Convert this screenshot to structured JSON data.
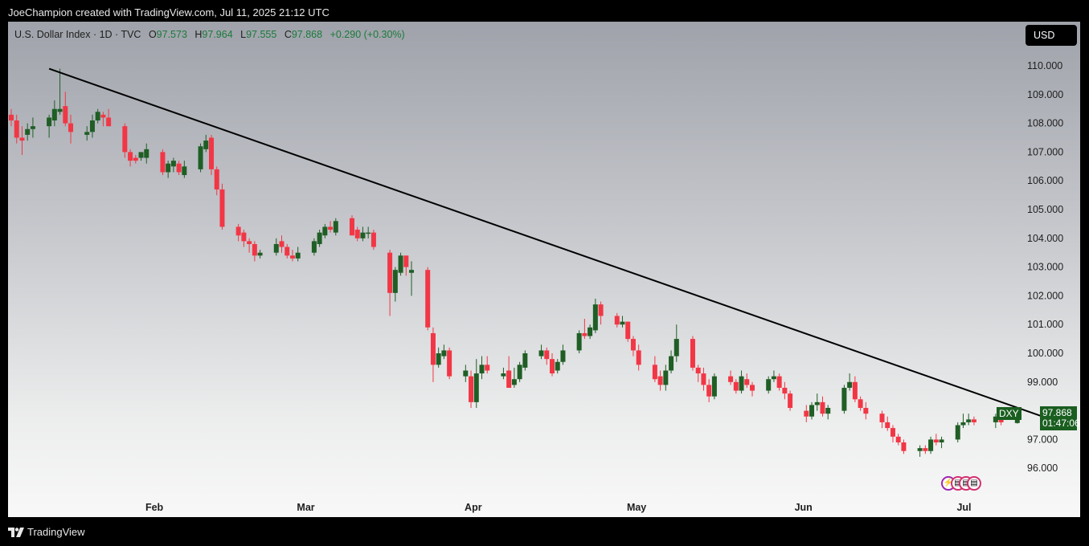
{
  "header": {
    "credit": "JoeChampion created with TradingView.com, Jul 11, 2025 21:12 UTC"
  },
  "legend": {
    "title": "U.S. Dollar Index · 1D · TVC",
    "open_label": "O",
    "open": "97.573",
    "high_label": "H",
    "high": "97.964",
    "low_label": "L",
    "low": "97.555",
    "close_label": "C",
    "close": "97.868",
    "change": "+0.290 (+0.30%)"
  },
  "currency_button": "USD",
  "last_price": {
    "symbol": "DXY",
    "price": "97.868",
    "countdown": "01:47:06"
  },
  "footer": {
    "brand": "TradingView"
  },
  "colors": {
    "up": "#1f5e25",
    "down": "#f23645",
    "trendline": "#000000",
    "price_tag": "#1a5e20"
  },
  "chart_data": {
    "type": "candlestick",
    "symbol": "DXY",
    "timeframe": "1D",
    "y_ticks": [
      "110.000",
      "109.000",
      "108.000",
      "107.000",
      "106.000",
      "105.000",
      "104.000",
      "103.000",
      "102.000",
      "101.000",
      "100.000",
      "99.000",
      "97.000",
      "96.000"
    ],
    "x_ticks": [
      "Feb",
      "Mar",
      "Apr",
      "May",
      "Jun",
      "Jul"
    ],
    "ylim": [
      95.0,
      111.0
    ],
    "trendline": {
      "start": {
        "date": "2025-01-13",
        "value": 109.9
      },
      "end": {
        "date": "2025-07-21",
        "value": 97.45
      }
    },
    "candles": [
      {
        "date": "2025-01-06",
        "o": 108.3,
        "h": 108.5,
        "l": 107.9,
        "c": 108.1
      },
      {
        "date": "2025-01-07",
        "o": 108.1,
        "h": 108.3,
        "l": 107.3,
        "c": 107.5
      },
      {
        "date": "2025-01-08",
        "o": 107.5,
        "h": 107.9,
        "l": 106.9,
        "c": 107.4
      },
      {
        "date": "2025-01-09",
        "o": 107.6,
        "h": 108.0,
        "l": 107.4,
        "c": 107.8
      },
      {
        "date": "2025-01-10",
        "o": 107.8,
        "h": 108.2,
        "l": 107.5,
        "c": 107.9
      },
      {
        "date": "2025-01-13",
        "o": 107.9,
        "h": 108.3,
        "l": 107.5,
        "c": 108.2
      },
      {
        "date": "2025-01-14",
        "o": 108.1,
        "h": 108.8,
        "l": 107.9,
        "c": 108.5
      },
      {
        "date": "2025-01-15",
        "o": 108.4,
        "h": 109.9,
        "l": 108.3,
        "c": 108.5
      },
      {
        "date": "2025-01-16",
        "o": 108.6,
        "h": 109.1,
        "l": 107.9,
        "c": 108.0
      },
      {
        "date": "2025-01-17",
        "o": 108.0,
        "h": 108.3,
        "l": 107.3,
        "c": 107.7
      },
      {
        "date": "2025-01-20",
        "o": 107.6,
        "h": 107.9,
        "l": 107.4,
        "c": 107.7
      },
      {
        "date": "2025-01-21",
        "o": 107.7,
        "h": 108.3,
        "l": 107.5,
        "c": 108.1
      },
      {
        "date": "2025-01-22",
        "o": 108.1,
        "h": 108.5,
        "l": 108.0,
        "c": 108.4
      },
      {
        "date": "2025-01-23",
        "o": 108.3,
        "h": 108.4,
        "l": 107.9,
        "c": 108.2
      },
      {
        "date": "2025-01-24",
        "o": 108.2,
        "h": 108.5,
        "l": 107.9,
        "c": 107.9
      },
      {
        "date": "2025-01-27",
        "o": 107.9,
        "h": 108.0,
        "l": 106.8,
        "c": 107.0
      },
      {
        "date": "2025-01-28",
        "o": 107.0,
        "h": 107.1,
        "l": 106.5,
        "c": 106.7
      },
      {
        "date": "2025-01-29",
        "o": 106.8,
        "h": 106.9,
        "l": 106.6,
        "c": 106.7
      },
      {
        "date": "2025-01-30",
        "o": 106.8,
        "h": 107.0,
        "l": 106.7,
        "c": 107.0
      },
      {
        "date": "2025-01-31",
        "o": 106.8,
        "h": 107.3,
        "l": 106.6,
        "c": 107.1
      },
      {
        "date": "2025-02-03",
        "o": 107.0,
        "h": 107.1,
        "l": 106.2,
        "c": 106.3
      },
      {
        "date": "2025-02-04",
        "o": 106.3,
        "h": 106.7,
        "l": 106.1,
        "c": 106.6
      },
      {
        "date": "2025-02-05",
        "o": 106.5,
        "h": 106.8,
        "l": 106.3,
        "c": 106.7
      },
      {
        "date": "2025-02-06",
        "o": 106.6,
        "h": 106.7,
        "l": 106.2,
        "c": 106.3
      },
      {
        "date": "2025-02-07",
        "o": 106.2,
        "h": 106.7,
        "l": 106.1,
        "c": 106.5
      },
      {
        "date": "2025-02-10",
        "o": 106.4,
        "h": 107.3,
        "l": 106.3,
        "c": 107.2
      },
      {
        "date": "2025-02-11",
        "o": 107.1,
        "h": 107.6,
        "l": 107.0,
        "c": 107.4
      },
      {
        "date": "2025-02-12",
        "o": 107.5,
        "h": 107.6,
        "l": 106.2,
        "c": 106.4
      },
      {
        "date": "2025-02-13",
        "o": 106.4,
        "h": 106.5,
        "l": 105.5,
        "c": 105.7
      },
      {
        "date": "2025-02-14",
        "o": 105.7,
        "h": 105.9,
        "l": 104.3,
        "c": 104.4
      },
      {
        "date": "2025-02-17",
        "o": 104.4,
        "h": 104.5,
        "l": 103.9,
        "c": 104.1
      },
      {
        "date": "2025-02-18",
        "o": 104.2,
        "h": 104.3,
        "l": 103.7,
        "c": 103.9
      },
      {
        "date": "2025-02-19",
        "o": 103.9,
        "h": 104.0,
        "l": 103.5,
        "c": 103.8
      },
      {
        "date": "2025-02-20",
        "o": 103.8,
        "h": 103.9,
        "l": 103.2,
        "c": 103.4
      },
      {
        "date": "2025-02-21",
        "o": 103.4,
        "h": 103.6,
        "l": 103.3,
        "c": 103.5
      },
      {
        "date": "2025-02-24",
        "o": 103.5,
        "h": 104.0,
        "l": 103.4,
        "c": 103.8
      },
      {
        "date": "2025-02-25",
        "o": 103.9,
        "h": 104.1,
        "l": 103.5,
        "c": 103.7
      },
      {
        "date": "2025-02-26",
        "o": 103.7,
        "h": 103.8,
        "l": 103.3,
        "c": 103.4
      },
      {
        "date": "2025-02-27",
        "o": 103.4,
        "h": 103.6,
        "l": 103.2,
        "c": 103.3
      },
      {
        "date": "2025-02-28",
        "o": 103.3,
        "h": 103.7,
        "l": 103.2,
        "c": 103.5
      },
      {
        "date": "2025-03-03",
        "o": 103.5,
        "h": 104.0,
        "l": 103.4,
        "c": 103.9
      },
      {
        "date": "2025-03-04",
        "o": 103.8,
        "h": 104.3,
        "l": 103.7,
        "c": 104.2
      },
      {
        "date": "2025-03-05",
        "o": 104.1,
        "h": 104.5,
        "l": 104.0,
        "c": 104.4
      },
      {
        "date": "2025-03-06",
        "o": 104.4,
        "h": 104.6,
        "l": 104.2,
        "c": 104.3
      },
      {
        "date": "2025-03-07",
        "o": 104.2,
        "h": 104.7,
        "l": 104.1,
        "c": 104.6
      },
      {
        "date": "2025-03-10",
        "o": 104.7,
        "h": 104.8,
        "l": 104.1,
        "c": 104.1
      },
      {
        "date": "2025-03-11",
        "o": 104.3,
        "h": 104.4,
        "l": 103.9,
        "c": 104.0
      },
      {
        "date": "2025-03-12",
        "o": 104.0,
        "h": 104.4,
        "l": 103.9,
        "c": 104.2
      },
      {
        "date": "2025-03-13",
        "o": 104.2,
        "h": 104.4,
        "l": 104.0,
        "c": 104.2
      },
      {
        "date": "2025-03-14",
        "o": 104.2,
        "h": 104.3,
        "l": 103.6,
        "c": 103.7
      },
      {
        "date": "2025-03-17",
        "o": 103.5,
        "h": 103.6,
        "l": 101.3,
        "c": 102.1
      },
      {
        "date": "2025-03-18",
        "o": 102.1,
        "h": 103.0,
        "l": 101.8,
        "c": 102.9
      },
      {
        "date": "2025-03-19",
        "o": 102.8,
        "h": 103.5,
        "l": 102.7,
        "c": 103.4
      },
      {
        "date": "2025-03-20",
        "o": 103.4,
        "h": 103.4,
        "l": 102.7,
        "c": 103.0
      },
      {
        "date": "2025-03-21",
        "o": 102.8,
        "h": 103.2,
        "l": 102.0,
        "c": 102.9
      },
      {
        "date": "2025-03-24",
        "o": 102.9,
        "h": 103.0,
        "l": 100.8,
        "c": 100.9
      },
      {
        "date": "2025-03-25",
        "o": 100.7,
        "h": 100.9,
        "l": 99.0,
        "c": 99.6
      },
      {
        "date": "2025-03-26",
        "o": 99.6,
        "h": 100.2,
        "l": 99.5,
        "c": 100.0
      },
      {
        "date": "2025-03-27",
        "o": 99.9,
        "h": 100.3,
        "l": 99.8,
        "c": 100.1
      },
      {
        "date": "2025-03-28",
        "o": 100.1,
        "h": 100.2,
        "l": 99.1,
        "c": 99.2
      },
      {
        "date": "2025-03-31",
        "o": 99.2,
        "h": 99.6,
        "l": 99.0,
        "c": 99.4
      },
      {
        "date": "2025-04-01",
        "o": 99.2,
        "h": 99.4,
        "l": 98.1,
        "c": 98.3
      },
      {
        "date": "2025-04-02",
        "o": 98.3,
        "h": 99.8,
        "l": 98.1,
        "c": 99.3
      },
      {
        "date": "2025-04-03",
        "o": 99.3,
        "h": 99.9,
        "l": 99.1,
        "c": 99.6
      },
      {
        "date": "2025-04-04",
        "o": 99.6,
        "h": 99.9,
        "l": 99.3,
        "c": 99.4
      },
      {
        "date": "2025-04-07",
        "o": 99.2,
        "h": 99.5,
        "l": 99.1,
        "c": 99.3
      },
      {
        "date": "2025-04-08",
        "o": 99.4,
        "h": 99.9,
        "l": 98.8,
        "c": 98.8
      },
      {
        "date": "2025-04-09",
        "o": 98.9,
        "h": 99.5,
        "l": 98.8,
        "c": 99.1
      },
      {
        "date": "2025-04-10",
        "o": 99.1,
        "h": 99.7,
        "l": 99.0,
        "c": 99.6
      },
      {
        "date": "2025-04-11",
        "o": 99.5,
        "h": 100.1,
        "l": 99.4,
        "c": 100.0
      },
      {
        "date": "2025-04-14",
        "o": 99.9,
        "h": 100.3,
        "l": 99.8,
        "c": 100.1
      },
      {
        "date": "2025-04-15",
        "o": 100.1,
        "h": 100.2,
        "l": 99.6,
        "c": 99.8
      },
      {
        "date": "2025-04-16",
        "o": 99.8,
        "h": 100.0,
        "l": 99.2,
        "c": 99.3
      },
      {
        "date": "2025-04-17",
        "o": 99.4,
        "h": 99.8,
        "l": 99.3,
        "c": 99.7
      },
      {
        "date": "2025-04-18",
        "o": 99.7,
        "h": 100.3,
        "l": 99.6,
        "c": 100.1
      },
      {
        "date": "2025-04-21",
        "o": 100.1,
        "h": 100.8,
        "l": 100.0,
        "c": 100.7
      },
      {
        "date": "2025-04-22",
        "o": 100.7,
        "h": 101.2,
        "l": 100.5,
        "c": 100.6
      },
      {
        "date": "2025-04-23",
        "o": 100.6,
        "h": 101.0,
        "l": 100.5,
        "c": 100.9
      },
      {
        "date": "2025-04-24",
        "o": 100.8,
        "h": 101.9,
        "l": 100.7,
        "c": 101.7
      },
      {
        "date": "2025-04-25",
        "o": 101.7,
        "h": 101.8,
        "l": 101.0,
        "c": 101.3
      },
      {
        "date": "2025-04-28",
        "o": 101.3,
        "h": 101.4,
        "l": 100.9,
        "c": 101.0
      },
      {
        "date": "2025-04-29",
        "o": 101.0,
        "h": 101.3,
        "l": 100.9,
        "c": 101.1
      },
      {
        "date": "2025-04-30",
        "o": 101.1,
        "h": 101.1,
        "l": 100.4,
        "c": 100.5
      },
      {
        "date": "2025-05-01",
        "o": 100.5,
        "h": 100.6,
        "l": 99.9,
        "c": 100.1
      },
      {
        "date": "2025-05-02",
        "o": 100.1,
        "h": 100.3,
        "l": 99.4,
        "c": 99.6
      },
      {
        "date": "2025-05-05",
        "o": 99.6,
        "h": 99.9,
        "l": 99.0,
        "c": 99.1
      },
      {
        "date": "2025-05-06",
        "o": 99.2,
        "h": 99.4,
        "l": 98.7,
        "c": 98.9
      },
      {
        "date": "2025-05-07",
        "o": 98.9,
        "h": 99.6,
        "l": 98.7,
        "c": 99.4
      },
      {
        "date": "2025-05-08",
        "o": 99.4,
        "h": 100.1,
        "l": 99.3,
        "c": 99.9
      },
      {
        "date": "2025-05-09",
        "o": 99.9,
        "h": 101.0,
        "l": 99.7,
        "c": 100.5
      },
      {
        "date": "2025-05-12",
        "o": 100.5,
        "h": 100.6,
        "l": 99.4,
        "c": 99.5
      },
      {
        "date": "2025-05-13",
        "o": 99.5,
        "h": 99.6,
        "l": 99.0,
        "c": 99.3
      },
      {
        "date": "2025-05-14",
        "o": 99.3,
        "h": 99.5,
        "l": 98.7,
        "c": 98.9
      },
      {
        "date": "2025-05-15",
        "o": 98.9,
        "h": 99.1,
        "l": 98.3,
        "c": 98.5
      },
      {
        "date": "2025-05-16",
        "o": 98.5,
        "h": 99.3,
        "l": 98.4,
        "c": 99.2
      },
      {
        "date": "2025-05-19",
        "o": 99.2,
        "h": 99.4,
        "l": 98.9,
        "c": 99.0
      },
      {
        "date": "2025-05-20",
        "o": 99.0,
        "h": 99.1,
        "l": 98.6,
        "c": 98.7
      },
      {
        "date": "2025-05-21",
        "o": 98.7,
        "h": 99.4,
        "l": 98.6,
        "c": 99.2
      },
      {
        "date": "2025-05-22",
        "o": 99.1,
        "h": 99.3,
        "l": 98.8,
        "c": 98.9
      },
      {
        "date": "2025-05-23",
        "o": 98.9,
        "h": 99.0,
        "l": 98.5,
        "c": 98.7
      },
      {
        "date": "2025-05-26",
        "o": 98.7,
        "h": 99.2,
        "l": 98.6,
        "c": 99.1
      },
      {
        "date": "2025-05-27",
        "o": 99.1,
        "h": 99.4,
        "l": 99.0,
        "c": 99.2
      },
      {
        "date": "2025-05-28",
        "o": 99.2,
        "h": 99.3,
        "l": 98.7,
        "c": 98.8
      },
      {
        "date": "2025-05-29",
        "o": 98.8,
        "h": 99.0,
        "l": 98.4,
        "c": 98.6
      },
      {
        "date": "2025-05-30",
        "o": 98.6,
        "h": 98.7,
        "l": 98.0,
        "c": 98.1
      },
      {
        "date": "2025-06-02",
        "o": 98.0,
        "h": 98.2,
        "l": 97.6,
        "c": 97.8
      },
      {
        "date": "2025-06-03",
        "o": 97.8,
        "h": 98.3,
        "l": 97.7,
        "c": 98.2
      },
      {
        "date": "2025-06-04",
        "o": 98.2,
        "h": 98.6,
        "l": 98.0,
        "c": 98.3
      },
      {
        "date": "2025-06-05",
        "o": 98.3,
        "h": 98.5,
        "l": 97.8,
        "c": 97.9
      },
      {
        "date": "2025-06-06",
        "o": 97.9,
        "h": 98.2,
        "l": 97.7,
        "c": 98.1
      },
      {
        "date": "2025-06-09",
        "o": 98.0,
        "h": 98.9,
        "l": 97.9,
        "c": 98.8
      },
      {
        "date": "2025-06-10",
        "o": 98.8,
        "h": 99.3,
        "l": 98.7,
        "c": 99.0
      },
      {
        "date": "2025-06-11",
        "o": 99.0,
        "h": 99.2,
        "l": 98.3,
        "c": 98.4
      },
      {
        "date": "2025-06-12",
        "o": 98.4,
        "h": 98.5,
        "l": 98.0,
        "c": 98.1
      },
      {
        "date": "2025-06-13",
        "o": 98.1,
        "h": 98.3,
        "l": 97.7,
        "c": 97.9
      },
      {
        "date": "2025-06-16",
        "o": 97.9,
        "h": 98.0,
        "l": 97.4,
        "c": 97.6
      },
      {
        "date": "2025-06-17",
        "o": 97.6,
        "h": 97.8,
        "l": 97.3,
        "c": 97.4
      },
      {
        "date": "2025-06-18",
        "o": 97.4,
        "h": 97.5,
        "l": 96.9,
        "c": 97.1
      },
      {
        "date": "2025-06-19",
        "o": 97.1,
        "h": 97.2,
        "l": 96.8,
        "c": 96.9
      },
      {
        "date": "2025-06-20",
        "o": 96.9,
        "h": 97.0,
        "l": 96.5,
        "c": 96.6
      },
      {
        "date": "2025-06-23",
        "o": 96.6,
        "h": 96.8,
        "l": 96.4,
        "c": 96.7
      },
      {
        "date": "2025-06-24",
        "o": 96.7,
        "h": 96.8,
        "l": 96.5,
        "c": 96.6
      },
      {
        "date": "2025-06-25",
        "o": 96.6,
        "h": 97.1,
        "l": 96.5,
        "c": 97.0
      },
      {
        "date": "2025-06-26",
        "o": 97.0,
        "h": 97.2,
        "l": 96.8,
        "c": 96.9
      },
      {
        "date": "2025-06-27",
        "o": 96.9,
        "h": 97.1,
        "l": 96.7,
        "c": 97.0
      },
      {
        "date": "2025-06-30",
        "o": 97.0,
        "h": 97.6,
        "l": 96.9,
        "c": 97.5
      },
      {
        "date": "2025-07-01",
        "o": 97.5,
        "h": 97.9,
        "l": 97.4,
        "c": 97.6
      },
      {
        "date": "2025-07-02",
        "o": 97.6,
        "h": 97.9,
        "l": 97.5,
        "c": 97.7
      },
      {
        "date": "2025-07-03",
        "o": 97.7,
        "h": 97.8,
        "l": 97.5,
        "c": 97.6
      },
      {
        "date": "2025-07-07",
        "o": 97.6,
        "h": 97.9,
        "l": 97.4,
        "c": 97.8
      },
      {
        "date": "2025-07-08",
        "o": 97.8,
        "h": 98.0,
        "l": 97.5,
        "c": 97.6
      },
      {
        "date": "2025-07-11",
        "o": 97.573,
        "h": 97.964,
        "l": 97.555,
        "c": 97.868
      }
    ]
  }
}
